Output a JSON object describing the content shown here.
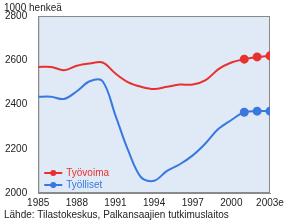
{
  "chart_data": {
    "type": "line",
    "y_label": "1000 henkeä",
    "source": "Lähde: Tilastokeskus, Palkansaajien tutkimuslaitos",
    "categories": [
      "1985",
      null,
      null,
      "1988",
      null,
      null,
      "1991",
      null,
      null,
      "1994",
      null,
      null,
      "1997",
      null,
      null,
      "2000",
      null,
      null,
      "2003e"
    ],
    "series": [
      {
        "name": "Työvoima",
        "color": "#e8312f",
        "marker": "circle",
        "values": [
          2570,
          2570,
          2555,
          2575,
          2585,
          2590,
          2540,
          2500,
          2480,
          2470,
          2480,
          2490,
          2490,
          2510,
          2560,
          2590,
          2605,
          2615,
          2620
        ]
      },
      {
        "name": "Työlliset",
        "color": "#3a78e0",
        "marker": "circle",
        "values": [
          2435,
          2435,
          2425,
          2460,
          2505,
          2505,
          2350,
          2190,
          2070,
          2055,
          2100,
          2130,
          2170,
          2225,
          2290,
          2330,
          2365,
          2370,
          2370
        ]
      }
    ],
    "ylim": [
      2000,
      2800
    ],
    "yticks": [
      2000,
      2200,
      2400,
      2600,
      2800
    ],
    "grid": false,
    "legend": "lower left"
  }
}
